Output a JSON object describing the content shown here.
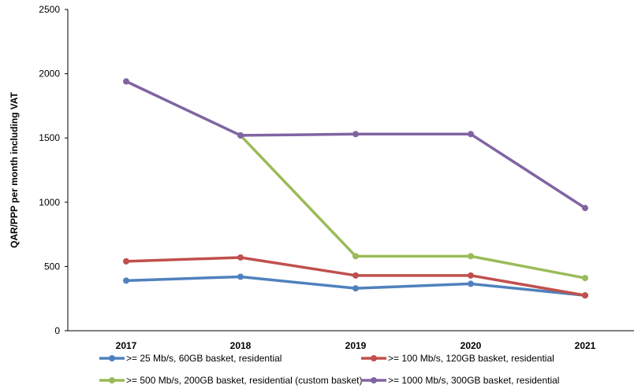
{
  "chart_data": {
    "type": "line",
    "title": "",
    "xlabel": "",
    "ylabel": "QAR/PPP per month including VAT",
    "ylim": [
      0,
      2500
    ],
    "yticks": [
      0,
      500,
      1000,
      1500,
      2000,
      2500
    ],
    "categories": [
      "2017",
      "2018",
      "2019",
      "2020",
      "2021"
    ],
    "grid": false,
    "legend_position": "bottom",
    "series": [
      {
        "name": ">= 25 Mb/s, 60GB basket, residential",
        "color": "#4f81bd",
        "values": [
          390,
          420,
          330,
          365,
          275
        ]
      },
      {
        "name": ">= 100 Mb/s, 120GB basket, residential",
        "color": "#c0504d",
        "values": [
          540,
          570,
          430,
          430,
          275
        ]
      },
      {
        "name": ">= 500 Mb/s, 200GB basket, residential (custom basket)",
        "color": "#9bbb59",
        "values": [
          null,
          1520,
          580,
          580,
          410
        ]
      },
      {
        "name": ">= 1000 Mb/s, 300GB basket, residential",
        "color": "#8064a2",
        "values": [
          1940,
          1520,
          1530,
          1530,
          955
        ]
      }
    ]
  }
}
